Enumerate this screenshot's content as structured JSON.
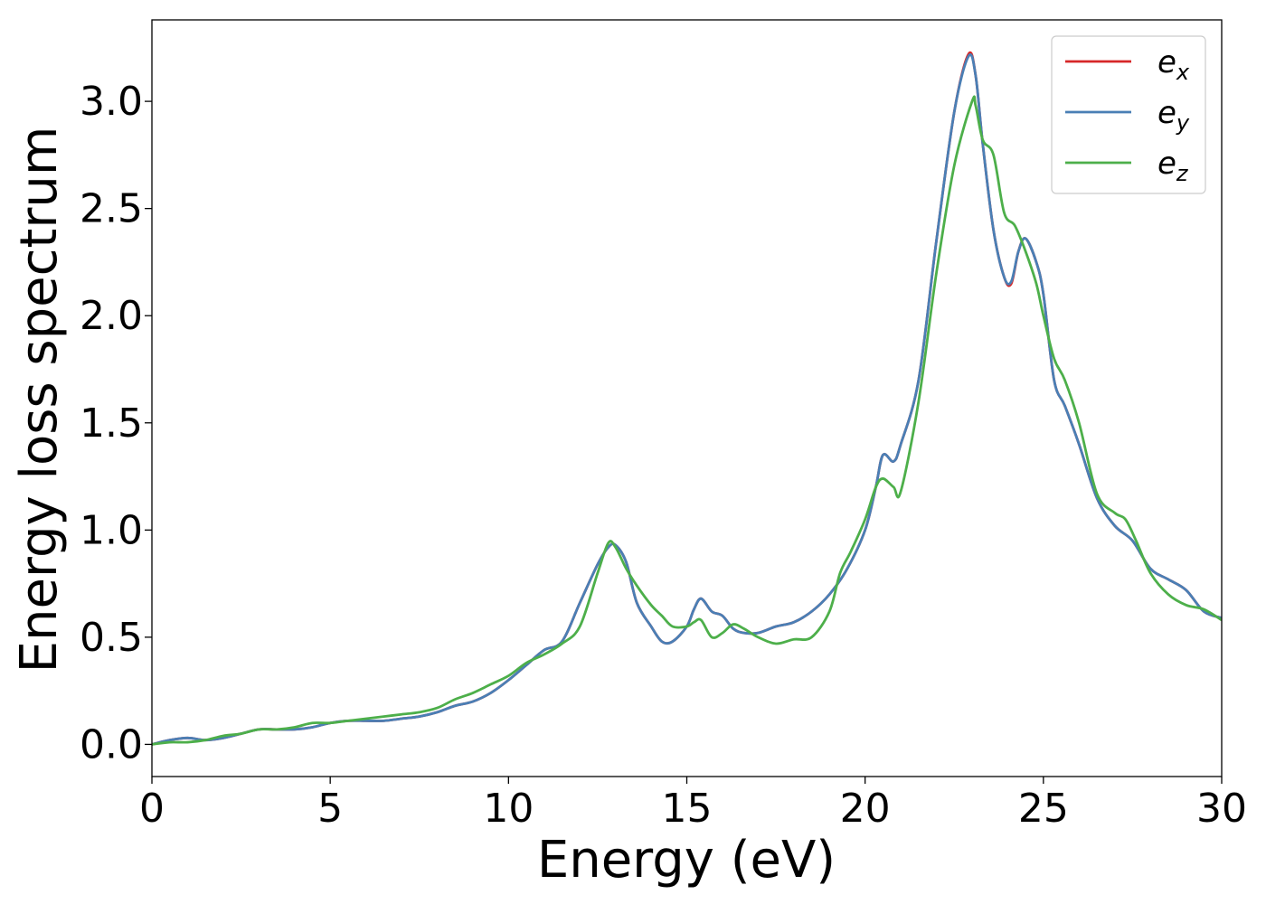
{
  "chart_data": {
    "type": "line",
    "xlabel": "Energy (eV)",
    "ylabel": "Energy loss spectrum",
    "xlim": [
      0,
      30
    ],
    "ylim": [
      -0.15,
      3.38
    ],
    "xticks": [
      "0",
      "5",
      "10",
      "15",
      "20",
      "25",
      "30"
    ],
    "yticks": [
      "0.0",
      "0.5",
      "1.0",
      "1.5",
      "2.0",
      "2.5",
      "3.0"
    ],
    "grid": false,
    "legend_position": "top-right",
    "series": [
      {
        "name": "e",
        "subscript": "x",
        "color": "#d62728",
        "x": [
          0,
          0.5,
          1,
          1.5,
          2,
          2.5,
          3,
          3.5,
          4,
          4.5,
          5,
          5.5,
          6,
          6.5,
          7,
          7.5,
          8,
          8.5,
          9,
          9.5,
          10,
          10.5,
          11,
          11.5,
          12,
          12.5,
          12.8,
          13,
          13.3,
          13.6,
          14,
          14.3,
          14.6,
          15,
          15.2,
          15.4,
          15.7,
          16,
          16.3,
          16.6,
          17,
          17.5,
          18,
          18.5,
          19,
          19.5,
          20,
          20.3,
          20.5,
          20.8,
          21,
          21.5,
          22,
          22.5,
          22.9,
          23.1,
          23.3,
          23.6,
          23.9,
          24.1,
          24.3,
          24.5,
          24.8,
          25,
          25.3,
          25.6,
          26,
          26.5,
          27,
          27.5,
          28,
          28.5,
          29,
          29.5,
          30
        ],
        "values": [
          0.0,
          0.02,
          0.03,
          0.02,
          0.03,
          0.05,
          0.07,
          0.07,
          0.07,
          0.08,
          0.1,
          0.11,
          0.11,
          0.11,
          0.12,
          0.13,
          0.15,
          0.18,
          0.2,
          0.24,
          0.3,
          0.37,
          0.44,
          0.48,
          0.66,
          0.84,
          0.92,
          0.93,
          0.85,
          0.66,
          0.55,
          0.48,
          0.48,
          0.55,
          0.63,
          0.68,
          0.62,
          0.6,
          0.54,
          0.52,
          0.52,
          0.55,
          0.57,
          0.62,
          0.7,
          0.82,
          1.0,
          1.2,
          1.35,
          1.32,
          1.4,
          1.7,
          2.35,
          2.95,
          3.22,
          3.12,
          2.8,
          2.4,
          2.18,
          2.15,
          2.3,
          2.36,
          2.25,
          2.1,
          1.7,
          1.58,
          1.4,
          1.15,
          1.02,
          0.95,
          0.82,
          0.77,
          0.72,
          0.62,
          0.59
        ]
      },
      {
        "name": "e",
        "subscript": "y",
        "color": "#4a7fb5",
        "x": [
          0,
          0.5,
          1,
          1.5,
          2,
          2.5,
          3,
          3.5,
          4,
          4.5,
          5,
          5.5,
          6,
          6.5,
          7,
          7.5,
          8,
          8.5,
          9,
          9.5,
          10,
          10.5,
          11,
          11.5,
          12,
          12.5,
          12.8,
          13,
          13.3,
          13.6,
          14,
          14.3,
          14.6,
          15,
          15.2,
          15.4,
          15.7,
          16,
          16.3,
          16.6,
          17,
          17.5,
          18,
          18.5,
          19,
          19.5,
          20,
          20.3,
          20.5,
          20.8,
          21,
          21.5,
          22,
          22.5,
          22.9,
          23.1,
          23.3,
          23.6,
          23.9,
          24.1,
          24.3,
          24.5,
          24.8,
          25,
          25.3,
          25.6,
          26,
          26.5,
          27,
          27.5,
          28,
          28.5,
          29,
          29.5,
          30
        ],
        "values": [
          0.0,
          0.02,
          0.03,
          0.02,
          0.03,
          0.05,
          0.07,
          0.07,
          0.07,
          0.08,
          0.1,
          0.11,
          0.11,
          0.11,
          0.12,
          0.13,
          0.15,
          0.18,
          0.2,
          0.24,
          0.3,
          0.37,
          0.44,
          0.48,
          0.66,
          0.84,
          0.92,
          0.93,
          0.85,
          0.66,
          0.55,
          0.48,
          0.48,
          0.55,
          0.63,
          0.68,
          0.62,
          0.6,
          0.54,
          0.52,
          0.52,
          0.55,
          0.57,
          0.62,
          0.7,
          0.82,
          1.0,
          1.2,
          1.35,
          1.32,
          1.4,
          1.7,
          2.35,
          2.95,
          3.21,
          3.12,
          2.8,
          2.4,
          2.18,
          2.16,
          2.3,
          2.36,
          2.25,
          2.1,
          1.7,
          1.58,
          1.4,
          1.15,
          1.02,
          0.95,
          0.82,
          0.77,
          0.72,
          0.62,
          0.59
        ]
      },
      {
        "name": "e",
        "subscript": "z",
        "color": "#4daf4a",
        "x": [
          0,
          0.5,
          1,
          1.5,
          2,
          2.5,
          3,
          3.5,
          4,
          4.5,
          5,
          5.5,
          6,
          6.5,
          7,
          7.5,
          8,
          8.5,
          9,
          9.5,
          10,
          10.5,
          11,
          11.5,
          12,
          12.5,
          12.8,
          13,
          13.3,
          13.6,
          14,
          14.3,
          14.6,
          15,
          15.2,
          15.4,
          15.7,
          16,
          16.3,
          16.6,
          17,
          17.5,
          18,
          18.5,
          19,
          19.3,
          19.6,
          20,
          20.3,
          20.5,
          20.8,
          21,
          21.5,
          22,
          22.5,
          23,
          23.1,
          23.3,
          23.6,
          23.9,
          24.2,
          24.5,
          24.8,
          25,
          25.3,
          25.6,
          26,
          26.5,
          27,
          27.3,
          27.6,
          28,
          28.5,
          29,
          29.5,
          30
        ],
        "values": [
          0.0,
          0.01,
          0.01,
          0.02,
          0.04,
          0.05,
          0.07,
          0.07,
          0.08,
          0.1,
          0.1,
          0.11,
          0.12,
          0.13,
          0.14,
          0.15,
          0.17,
          0.21,
          0.24,
          0.28,
          0.32,
          0.38,
          0.42,
          0.47,
          0.55,
          0.8,
          0.94,
          0.92,
          0.82,
          0.74,
          0.65,
          0.6,
          0.55,
          0.55,
          0.57,
          0.58,
          0.5,
          0.52,
          0.56,
          0.54,
          0.5,
          0.47,
          0.49,
          0.5,
          0.62,
          0.8,
          0.9,
          1.05,
          1.2,
          1.24,
          1.2,
          1.18,
          1.6,
          2.2,
          2.7,
          3.0,
          2.98,
          2.82,
          2.75,
          2.48,
          2.42,
          2.3,
          2.15,
          2.0,
          1.8,
          1.7,
          1.5,
          1.17,
          1.08,
          1.05,
          0.95,
          0.8,
          0.7,
          0.65,
          0.63,
          0.58
        ]
      }
    ]
  }
}
